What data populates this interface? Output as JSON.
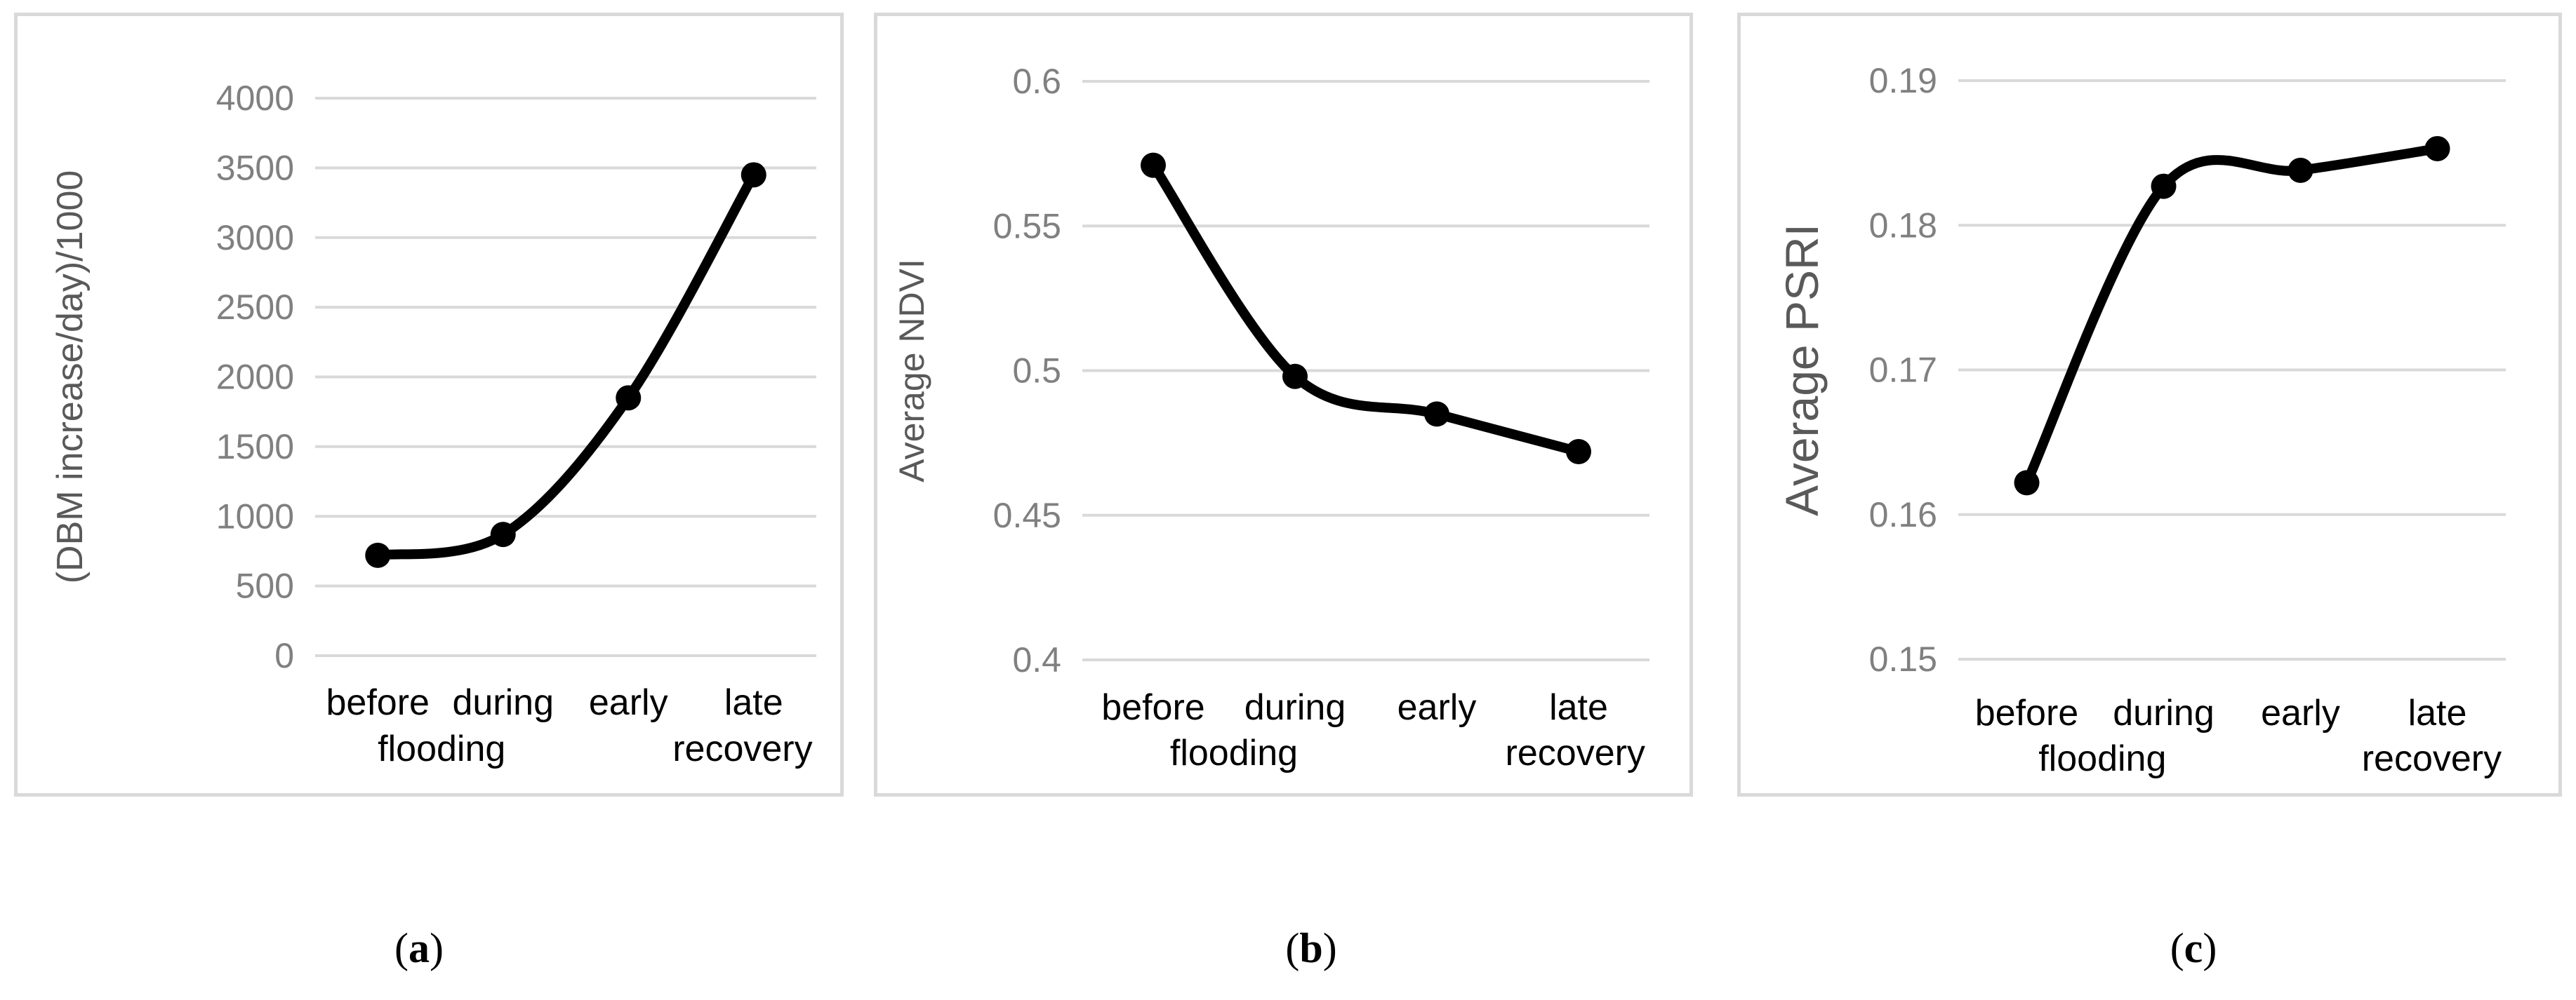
{
  "figure": {
    "captions": [
      {
        "open": "(",
        "letter": "a",
        "close": ")"
      },
      {
        "open": "(",
        "letter": "b",
        "close": ")"
      },
      {
        "open": "(",
        "letter": "c",
        "close": ")"
      }
    ]
  },
  "chart_data": [
    {
      "type": "line",
      "title": "",
      "categories": [
        "before",
        "during",
        "early",
        "late"
      ],
      "category_groups": [
        "flooding",
        "recovery"
      ],
      "values": [
        720,
        870,
        1850,
        3450
      ],
      "xlabel": "",
      "ylabel": "(DBM increase/day)/1000",
      "ylim": [
        0,
        4000
      ],
      "yticks": [
        0,
        500,
        1000,
        1500,
        2000,
        2500,
        3000,
        3500,
        4000
      ],
      "grid": true,
      "smooth": true,
      "line_color": "#000000",
      "grid_color": "#d9d9d9"
    },
    {
      "type": "line",
      "title": "",
      "categories": [
        "before",
        "during",
        "early",
        "late"
      ],
      "category_groups": [
        "flooding",
        "recovery"
      ],
      "values": [
        0.571,
        0.498,
        0.485,
        0.472
      ],
      "xlabel": "",
      "ylabel": "Average NDVI",
      "ylim": [
        0.4,
        0.6
      ],
      "yticks": [
        0.4,
        0.45,
        0.5,
        0.55,
        0.6
      ],
      "ytick_labels": [
        "0.4",
        "0.45",
        "0.5",
        "0.55",
        "0.6"
      ],
      "grid": true,
      "smooth": true,
      "line_color": "#000000",
      "grid_color": "#d9d9d9"
    },
    {
      "type": "line",
      "title": "",
      "categories": [
        "before",
        "during",
        "early",
        "late"
      ],
      "category_groups": [
        "flooding",
        "recovery"
      ],
      "values": [
        0.1622,
        0.1827,
        0.1838,
        0.1853
      ],
      "xlabel": "",
      "ylabel": "Average PSRI",
      "ylim": [
        0.15,
        0.19
      ],
      "yticks": [
        0.15,
        0.16,
        0.17,
        0.18,
        0.19
      ],
      "ytick_labels": [
        "0.15",
        "0.16",
        "0.17",
        "0.18",
        "0.19"
      ],
      "grid": true,
      "smooth": true,
      "line_color": "#000000",
      "grid_color": "#d9d9d9"
    }
  ]
}
